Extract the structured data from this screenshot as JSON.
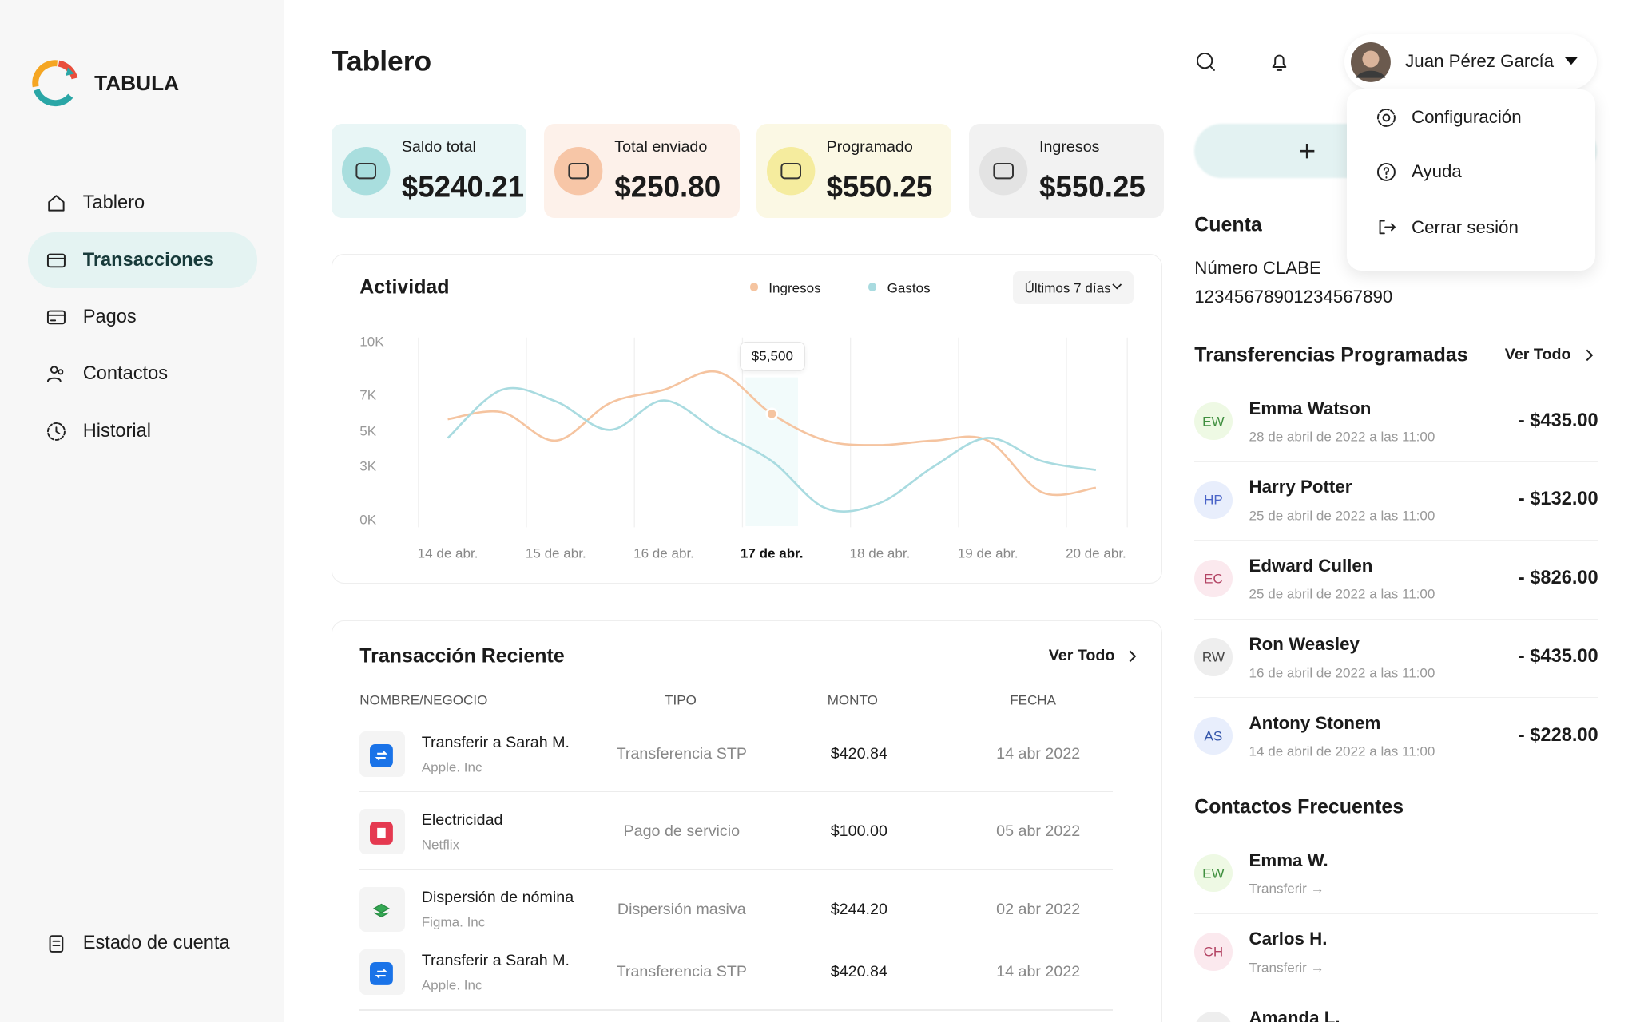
{
  "brand": "TABULA",
  "nav": {
    "items": [
      "Tablero",
      "Transacciones",
      "Pagos",
      "Contactos",
      "Historial"
    ],
    "active": 1,
    "footer": "Estado de cuenta"
  },
  "header": {
    "title": "Tablero",
    "user": "Juan Pérez García"
  },
  "user_menu": [
    "Configuración",
    "Ayuda",
    "Cerrar sesión"
  ],
  "cards": [
    {
      "label": "Saldo total",
      "value": "$5240.21"
    },
    {
      "label": "Total enviado",
      "value": "$250.80"
    },
    {
      "label": "Programado",
      "value": "$550.25"
    },
    {
      "label": "Ingresos",
      "value": "$550.25"
    }
  ],
  "activity": {
    "type": "line",
    "title": "Actividad",
    "range": "Últimos 7 días",
    "annotation": "$5,500",
    "categories": [
      "14 de abr.",
      null,
      "15 de abr.",
      null,
      "16 de abr.",
      null,
      "17 de abr.",
      null,
      "18 de abr.",
      null,
      "19 de abr.",
      null,
      "20 de abr."
    ],
    "highlight": 6,
    "series": [
      {
        "name": "Ingresos",
        "color": "#f5c4a0",
        "values": [
          5650,
          6050,
          4450,
          6550,
          7300,
          8300,
          5950,
          4450,
          4200,
          4450,
          4450,
          1550,
          1800
        ]
      },
      {
        "name": "Gastos",
        "color": "#a9dbe0",
        "values": [
          4600,
          7300,
          6650,
          5050,
          6700,
          4950,
          3300,
          650,
          950,
          3000,
          4600,
          3300,
          2800
        ]
      }
    ],
    "ylim": [
      0,
      10000
    ],
    "yticks": [
      {
        "value": 0,
        "label": "0K"
      },
      {
        "value": 3000,
        "label": "3K"
      },
      {
        "value": 5000,
        "label": "5K"
      },
      {
        "value": 7000,
        "label": "7K"
      },
      {
        "value": 10000,
        "label": "10K"
      }
    ]
  },
  "recent": {
    "title": "Transacción Reciente",
    "see_all": "Ver Todo",
    "columns": [
      "NOMBRE/NEGOCIO",
      "TIPO",
      "MONTO",
      "FECHA"
    ],
    "rows": [
      {
        "name": "Transferir a Sarah M.",
        "company": "Apple. Inc",
        "type": "Transferencia STP",
        "amount": "$420.84",
        "date": "14 abr 2022"
      },
      {
        "name": "Electricidad",
        "company": "Netflix",
        "type": "Pago de servicio",
        "amount": "$100.00",
        "date": "05 abr 2022"
      },
      {
        "name": "Dispersión de nómina",
        "company": "Figma. Inc",
        "type": "Dispersión masiva",
        "amount": "$244.20",
        "date": "02 abr 2022"
      },
      {
        "name": "Transferir a Sarah M.",
        "company": "Apple. Inc",
        "type": "Transferencia STP",
        "amount": "$420.84",
        "date": "14 abr 2022"
      }
    ]
  },
  "account": {
    "title": "Cuenta",
    "clabe_label": "Número CLABE",
    "clabe": "12345678901234567890"
  },
  "scheduled": {
    "title": "Transferencias Programadas",
    "see_all": "Ver Todo",
    "items": [
      {
        "initials": "EW",
        "name": "Emma Watson",
        "date": "28 de abril de 2022 a las 11:00",
        "amount": "- $435.00"
      },
      {
        "initials": "HP",
        "name": "Harry Potter",
        "date": "25 de abril de 2022 a las 11:00",
        "amount": "- $132.00"
      },
      {
        "initials": "EC",
        "name": "Edward Cullen",
        "date": "25 de abril de 2022 a las 11:00",
        "amount": "- $826.00"
      },
      {
        "initials": "RW",
        "name": "Ron Weasley",
        "date": "16 de abril de 2022 a las 11:00",
        "amount": "- $435.00"
      },
      {
        "initials": "AS",
        "name": "Antony Stonem",
        "date": "14 de abril de 2022 a las 11:00",
        "amount": "- $228.00"
      }
    ]
  },
  "frequent": {
    "title": "Contactos Frecuentes",
    "items": [
      {
        "initials": "EW",
        "name": "Emma W.",
        "action": "Transferir →"
      },
      {
        "initials": "CH",
        "name": "Carlos H.",
        "action": "Transferir →"
      },
      {
        "name": "Amanda L."
      }
    ]
  }
}
